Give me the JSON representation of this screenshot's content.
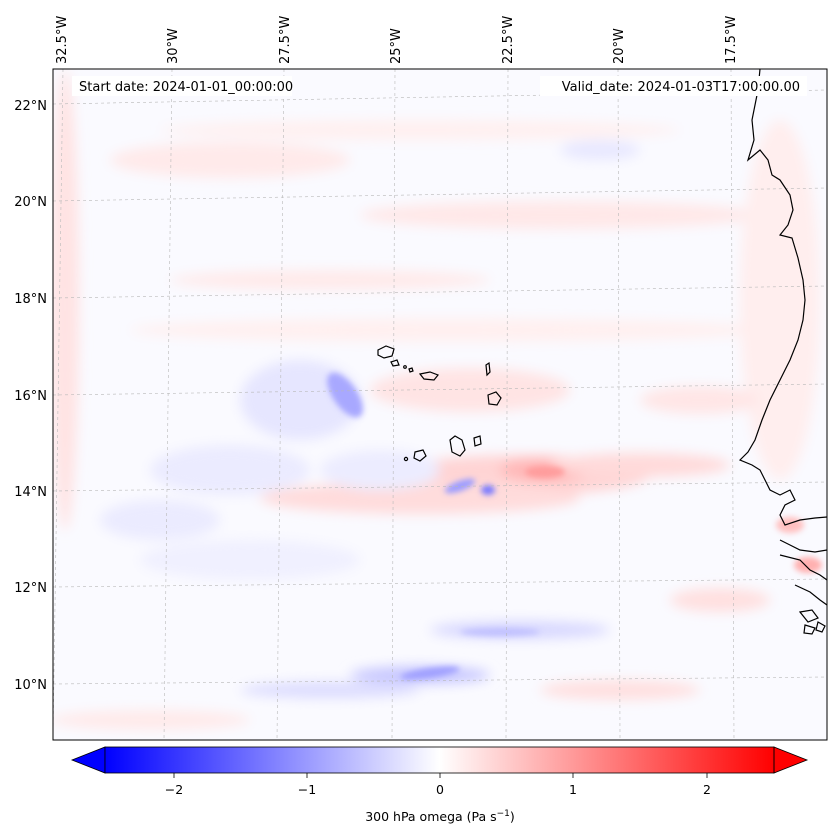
{
  "map": {
    "start_label": "Start date: 2024-01-01_00:00:00",
    "valid_label": "Valid_date: 2024-01-03T17:00:00.00",
    "top_lon_labels": [
      "32.5°W",
      "30°W",
      "27.5°W",
      "25°W",
      "22.5°W",
      "20°W",
      "17.5°W"
    ],
    "left_lat_labels": [
      "22°N",
      "20°N",
      "18°N",
      "16°N",
      "14°N",
      "12°N",
      "10°N"
    ],
    "colorbar": {
      "label": "300 hPa omega (Pa s",
      "label_sup": "−1",
      "label_end": ")",
      "ticks": [
        "−2",
        "−1",
        "0",
        "1",
        "2"
      ],
      "range": [
        -2.7,
        2.7
      ],
      "colors": {
        "negative": "#0000ff",
        "zero": "#ffffff",
        "positive": "#ff0000"
      }
    },
    "coastline_color": "#000000"
  }
}
